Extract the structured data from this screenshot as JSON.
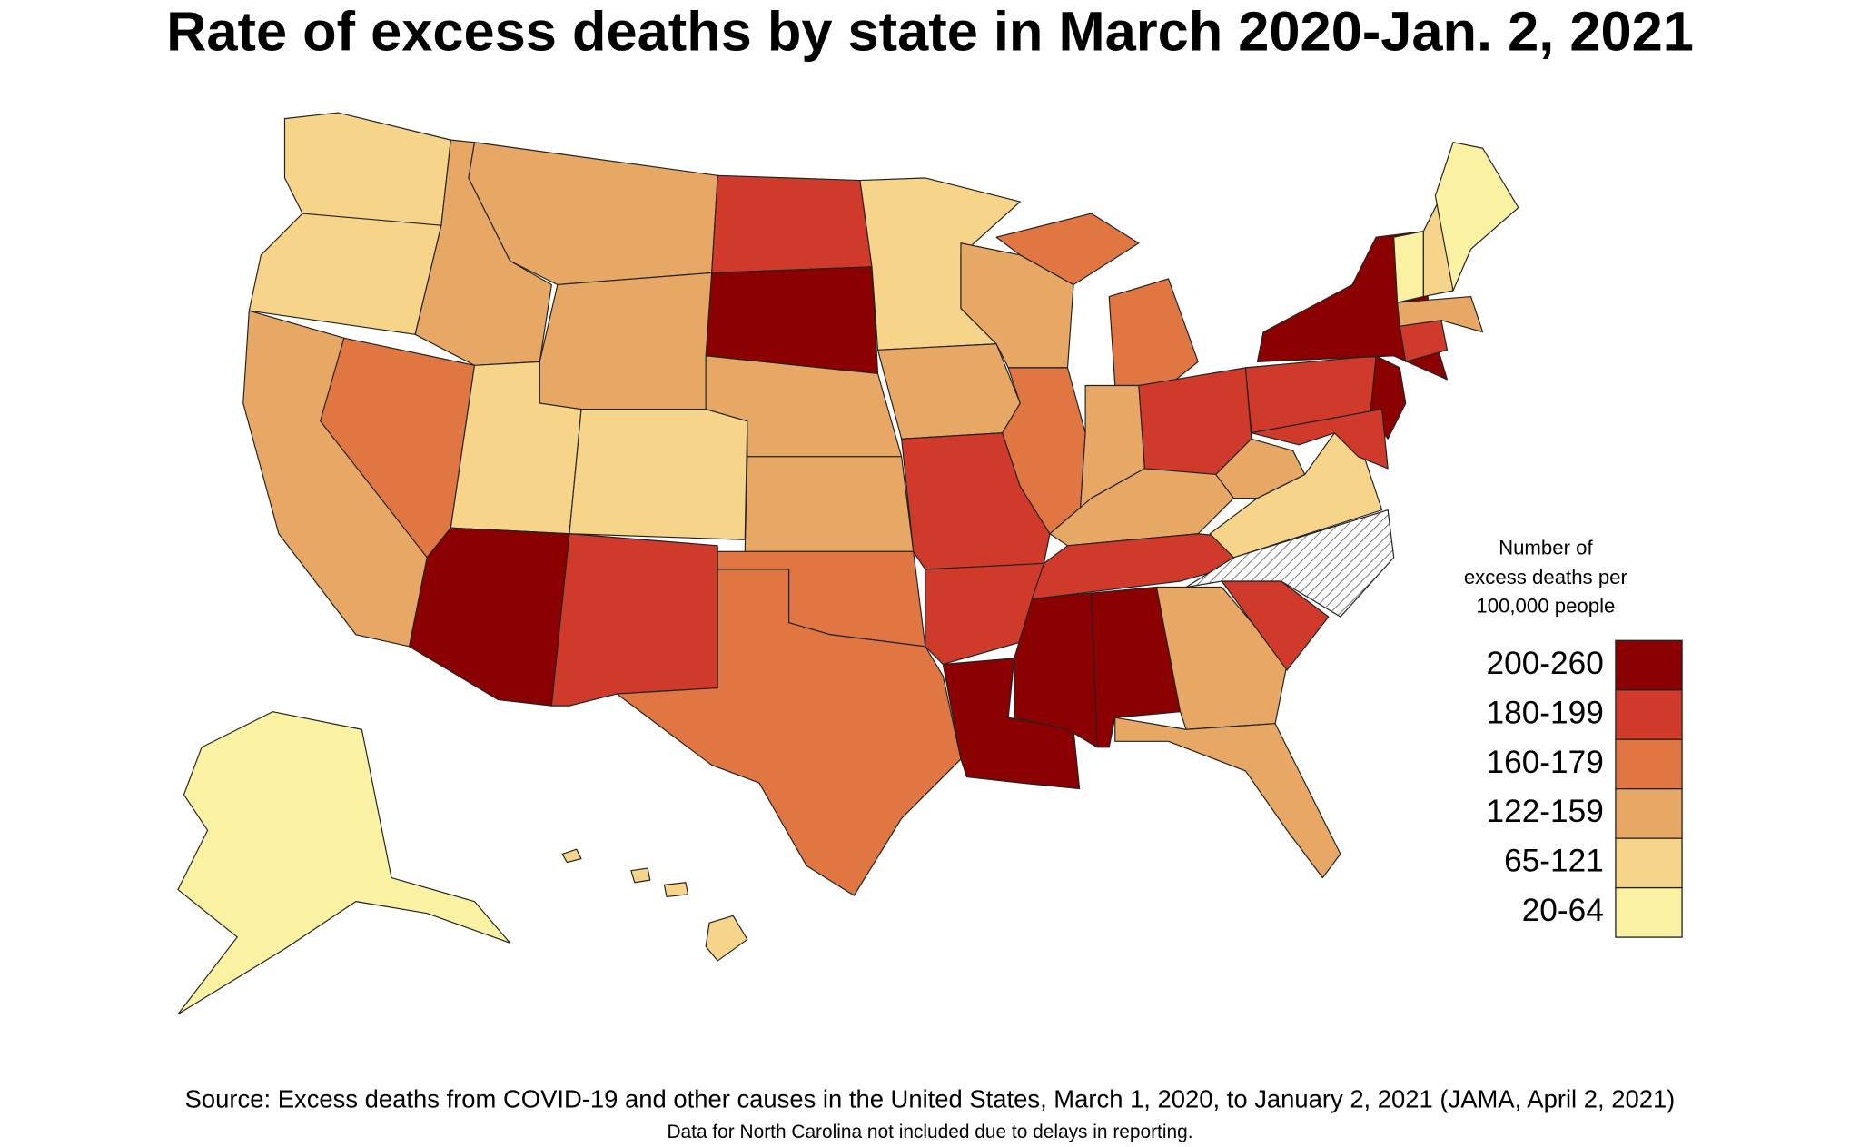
{
  "title": "Rate of excess deaths by state in March 2020-Jan. 2, 2021",
  "legend": {
    "title": [
      "Number of",
      "excess deaths per",
      "100,000 people"
    ],
    "bins": [
      {
        "label": "200-260",
        "color": "#8b0000"
      },
      {
        "label": "180-199",
        "color": "#cf3a2b"
      },
      {
        "label": "160-179",
        "color": "#e07743"
      },
      {
        "label": "122-159",
        "color": "#e8a865"
      },
      {
        "label": "65-121",
        "color": "#f6d48a"
      },
      {
        "label": "20-64",
        "color": "#fbf1a2"
      }
    ]
  },
  "source": "Source: Excess deaths from COVID-19 and other causes in the United States, March 1, 2020, to January 2, 2021 (JAMA, April 2, 2021)",
  "note": "Data for North Carolina not included due to delays in reporting."
}
